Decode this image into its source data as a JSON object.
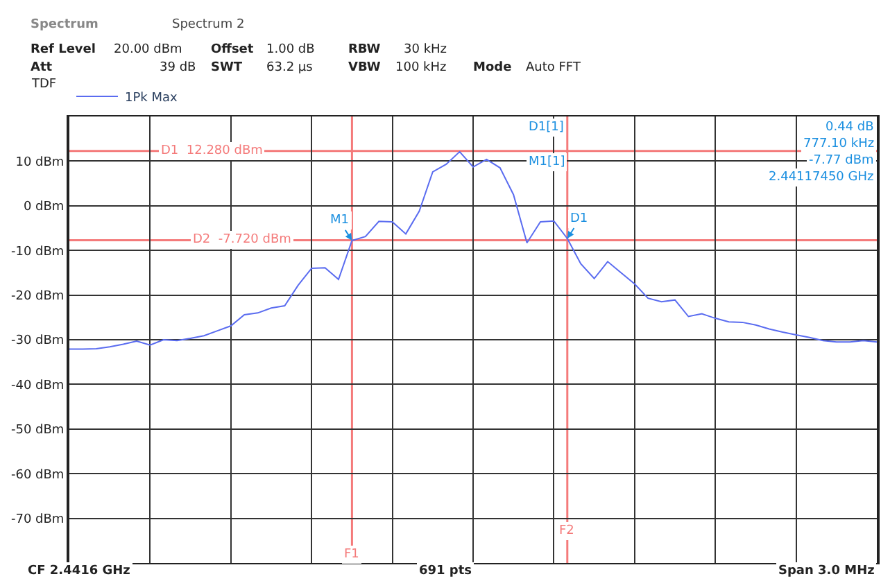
{
  "chart_data": {
    "type": "line",
    "categories": [
      null,
      null,
      null,
      null,
      null,
      null,
      null,
      null,
      null,
      null,
      null,
      null,
      null,
      null,
      null,
      null,
      null,
      null,
      null,
      null,
      null,
      null,
      null,
      null,
      null,
      null,
      null,
      null,
      null,
      null,
      null,
      null,
      null,
      null,
      null,
      null,
      null,
      null,
      null,
      null,
      null,
      null,
      null,
      null,
      null,
      null,
      null,
      null,
      null,
      null,
      null,
      null,
      null,
      null,
      null,
      null,
      null,
      null,
      null,
      null,
      null
    ],
    "series": [
      {
        "name": "1Pk Max",
        "color": "#5a6cf0",
        "values": [
          -32.1,
          -32.1,
          -32.0,
          -31.6,
          -31.0,
          -30.3,
          -31.2,
          -30.0,
          -30.2,
          -29.7,
          -29.1,
          -28.0,
          -26.9,
          -24.4,
          -24.0,
          -22.9,
          -22.4,
          -17.8,
          -14.0,
          -13.9,
          -16.5,
          -7.77,
          -6.9,
          -3.5,
          -3.6,
          -6.3,
          -1.2,
          7.6,
          9.3,
          12.1,
          8.7,
          10.4,
          8.5,
          2.5,
          -8.3,
          -3.6,
          -3.4,
          -7.33,
          -13.0,
          -16.3,
          -12.5,
          -15.0,
          -17.5,
          -20.7,
          -21.5,
          -21.1,
          -24.8,
          -24.2,
          -25.2,
          -26.0,
          -26.1,
          -26.7,
          -27.6,
          -28.3,
          -28.9,
          -29.5,
          -30.2,
          -30.5,
          -30.5,
          -30.2,
          -30.5
        ]
      }
    ],
    "ylim": [
      -80,
      20
    ],
    "yticks": [
      {
        "value": 10,
        "label": "10 dBm"
      },
      {
        "value": 0,
        "label": "0 dBm"
      },
      {
        "value": -10,
        "label": "-10 dBm"
      },
      {
        "value": -20,
        "label": "-20 dBm"
      },
      {
        "value": -30,
        "label": "-30 dBm"
      },
      {
        "value": -40,
        "label": "-40 dBm"
      },
      {
        "value": -50,
        "label": "-50 dBm"
      },
      {
        "value": -60,
        "label": "-60 dBm"
      },
      {
        "value": -70,
        "label": "-70 dBm"
      }
    ],
    "tick_labels": "y",
    "grid": true,
    "legend": "top left",
    "marker": "none",
    "line_style": "solid",
    "ref_lines": [
      {
        "axis": "y",
        "value": 12.28,
        "label": "D1  12.280 dBm",
        "color": "#f47a7a"
      },
      {
        "axis": "y",
        "value": -7.72,
        "label": "D2  -7.720 dBm",
        "color": "#f47a7a"
      },
      {
        "axis": "x",
        "label": "F1",
        "color": "#f47a7a"
      },
      {
        "axis": "x",
        "label": "F2",
        "color": "#f47a7a"
      }
    ],
    "annotations": [
      "Spectrum",
      "Spectrum 2",
      "Ref Level",
      "20.00 dBm",
      "Offset",
      "1.00 dB",
      "RBW",
      "30 kHz",
      "Att",
      "39 dB",
      "SWT",
      "63.2 µs",
      "VBW",
      "100 kHz",
      "Mode",
      "Auto FFT",
      "TDF",
      "D1[1]",
      "0.44 dB",
      "777.10 kHz",
      "M1[1]",
      "-7.77 dBm",
      "2.44117450 GHz",
      "CF 2.4416 GHz",
      "691 pts",
      "Span 3.0 MHz",
      {
        "text": "M1",
        "y": -7.77
      },
      {
        "text": "D1",
        "y": -7.33
      }
    ]
  }
}
